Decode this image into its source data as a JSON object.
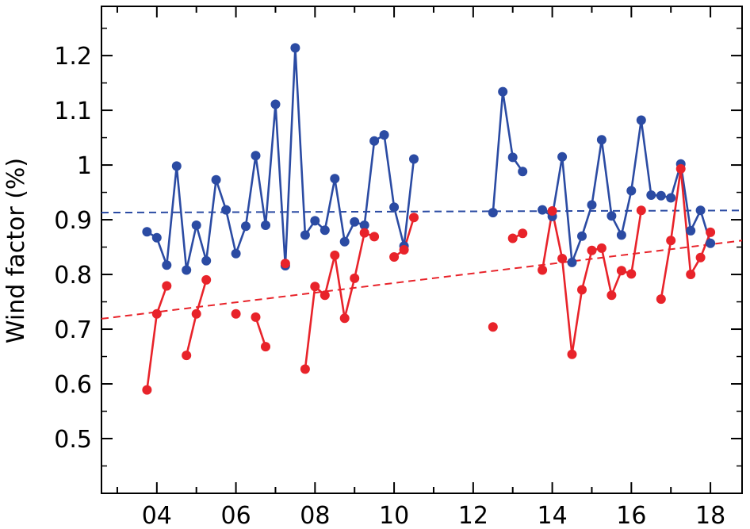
{
  "chart_data": {
    "type": "line",
    "ylabel": "Wind factor (%)",
    "xlabel": "",
    "xlim": [
      2002.6,
      2018.8
    ],
    "ylim": [
      0.4,
      1.29
    ],
    "x_ticks": [
      4,
      6,
      8,
      10,
      12,
      14,
      16,
      18
    ],
    "x_tick_labels": [
      "04",
      "06",
      "08",
      "10",
      "12",
      "14",
      "16",
      "18"
    ],
    "x_tick_years": [
      2004,
      2006,
      2008,
      2010,
      2012,
      2014,
      2016,
      2018
    ],
    "y_ticks": [
      0.5,
      0.6,
      0.7,
      0.8,
      0.9,
      1.0,
      1.1,
      1.2
    ],
    "y_tick_labels": [
      "0.5",
      "0.6",
      "0.7",
      "0.8",
      "0.9",
      "1",
      "1.1",
      "1.2"
    ],
    "grid": false,
    "series": [
      {
        "color": "#2b4ba3",
        "segments": [
          [
            [
              2003.75,
              0.878
            ],
            [
              2004.0,
              0.867
            ],
            [
              2004.25,
              0.817
            ],
            [
              2004.5,
              0.998
            ],
            [
              2004.75,
              0.808
            ],
            [
              2005.0,
              0.89
            ],
            [
              2005.25,
              0.825
            ],
            [
              2005.5,
              0.973
            ],
            [
              2005.75,
              0.918
            ],
            [
              2006.0,
              0.838
            ],
            [
              2006.25,
              0.888
            ],
            [
              2006.5,
              1.017
            ],
            [
              2006.75,
              0.89
            ],
            [
              2007.0,
              1.111
            ],
            [
              2007.25,
              0.816
            ],
            [
              2007.5,
              1.214
            ],
            [
              2007.75,
              0.872
            ],
            [
              2008.0,
              0.898
            ],
            [
              2008.25,
              0.881
            ],
            [
              2008.5,
              0.975
            ],
            [
              2008.75,
              0.86
            ],
            [
              2009.0,
              0.896
            ],
            [
              2009.25,
              0.89
            ],
            [
              2009.5,
              1.044
            ],
            [
              2009.75,
              1.055
            ],
            [
              2010.0,
              0.923
            ],
            [
              2010.25,
              0.852
            ],
            [
              2010.5,
              1.011
            ]
          ],
          [
            [
              2012.5,
              0.913
            ],
            [
              2012.75,
              1.134
            ],
            [
              2013.0,
              1.014
            ],
            [
              2013.25,
              0.988
            ]
          ],
          [
            [
              2013.75,
              0.918
            ],
            [
              2014.0,
              0.906
            ],
            [
              2014.25,
              1.015
            ],
            [
              2014.5,
              0.822
            ],
            [
              2014.75,
              0.87
            ],
            [
              2015.0,
              0.927
            ],
            [
              2015.25,
              1.046
            ],
            [
              2015.5,
              0.907
            ],
            [
              2015.75,
              0.872
            ],
            [
              2016.0,
              0.953
            ],
            [
              2016.25,
              1.082
            ],
            [
              2016.5,
              0.945
            ],
            [
              2016.75,
              0.944
            ],
            [
              2017.0,
              0.94
            ],
            [
              2017.25,
              1.002
            ],
            [
              2017.5,
              0.88
            ],
            [
              2017.75,
              0.917
            ],
            [
              2018.0,
              0.857
            ]
          ]
        ],
        "trend": [
          [
            2002.6,
            0.913
          ],
          [
            2018.8,
            0.917
          ]
        ]
      },
      {
        "color": "#e8232a",
        "segments": [
          [
            [
              2003.75,
              0.589
            ],
            [
              2004.0,
              0.728
            ],
            [
              2004.25,
              0.779
            ]
          ],
          [
            [
              2004.75,
              0.652
            ],
            [
              2005.0,
              0.728
            ],
            [
              2005.25,
              0.79
            ]
          ],
          [
            [
              2006.0,
              0.728
            ]
          ],
          [
            [
              2006.5,
              0.722
            ],
            [
              2006.75,
              0.668
            ]
          ],
          [
            [
              2007.25,
              0.82
            ]
          ],
          [
            [
              2007.75,
              0.627
            ],
            [
              2008.0,
              0.778
            ],
            [
              2008.25,
              0.762
            ],
            [
              2008.5,
              0.835
            ],
            [
              2008.75,
              0.72
            ],
            [
              2009.0,
              0.793
            ],
            [
              2009.25,
              0.876
            ],
            [
              2009.5,
              0.869
            ]
          ],
          [
            [
              2010.0,
              0.832
            ],
            [
              2010.25,
              0.845
            ],
            [
              2010.5,
              0.904
            ]
          ],
          [
            [
              2012.5,
              0.704
            ]
          ],
          [
            [
              2013.0,
              0.866
            ],
            [
              2013.25,
              0.875
            ]
          ],
          [
            [
              2013.75,
              0.808
            ],
            [
              2014.0,
              0.916
            ],
            [
              2014.25,
              0.829
            ],
            [
              2014.5,
              0.654
            ],
            [
              2014.75,
              0.772
            ],
            [
              2015.0,
              0.844
            ],
            [
              2015.25,
              0.848
            ],
            [
              2015.5,
              0.762
            ],
            [
              2015.75,
              0.807
            ],
            [
              2016.0,
              0.801
            ],
            [
              2016.25,
              0.917
            ]
          ],
          [
            [
              2016.75,
              0.755
            ],
            [
              2017.0,
              0.862
            ],
            [
              2017.25,
              0.993
            ],
            [
              2017.5,
              0.8
            ],
            [
              2017.75,
              0.831
            ],
            [
              2018.0,
              0.877
            ]
          ]
        ],
        "trend": [
          [
            2002.6,
            0.719
          ],
          [
            2018.8,
            0.862
          ]
        ]
      }
    ]
  }
}
